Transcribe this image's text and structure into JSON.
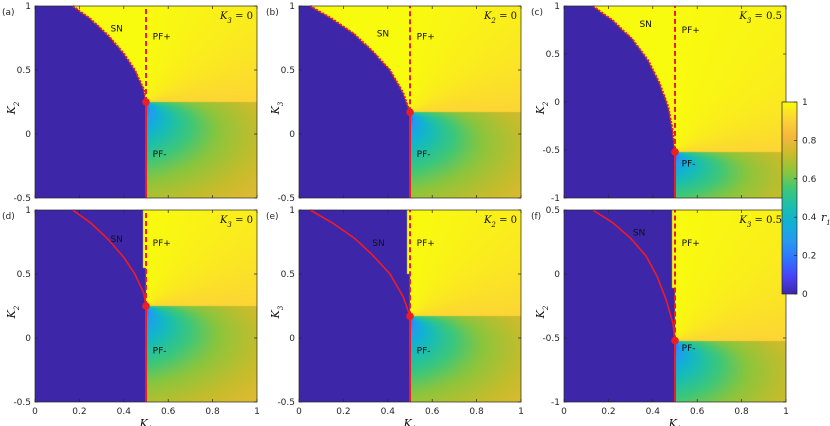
{
  "chart_data": [
    {
      "type": "heatmap",
      "panel": "(a)",
      "corner_label": "K3 = 0",
      "corner_label_var": "K",
      "corner_label_sub": "3",
      "corner_label_val": " = 0",
      "xlabel": "",
      "ylabel_var": "K",
      "ylabel_sub": "2",
      "xlim": [
        0,
        1
      ],
      "ylim": [
        -0.5,
        1
      ],
      "xticks": [],
      "yticks": [
        "-0.5",
        "0",
        "0.5",
        "1"
      ],
      "ytick_values": [
        -0.5,
        0,
        0.5,
        1
      ],
      "variant": "stable",
      "pf_x": 0.5,
      "critical_point": [
        0.5,
        0.25
      ],
      "sn_curve": [
        [
          0.17,
          1.0
        ],
        [
          0.25,
          0.9
        ],
        [
          0.33,
          0.77
        ],
        [
          0.4,
          0.63
        ],
        [
          0.45,
          0.5
        ],
        [
          0.49,
          0.35
        ],
        [
          0.5,
          0.25
        ]
      ],
      "annotations": [
        {
          "text": "SN",
          "x": 0.34,
          "y": 0.8
        },
        {
          "text": "PF+",
          "x": 0.53,
          "y": 0.74
        },
        {
          "text": "PF-",
          "x": 0.53,
          "y": -0.18
        }
      ]
    },
    {
      "type": "heatmap",
      "panel": "(b)",
      "corner_label": "K2 = 0",
      "corner_label_var": "K",
      "corner_label_sub": "2",
      "corner_label_val": " = 0",
      "xlabel": "",
      "ylabel_var": "K",
      "ylabel_sub": "3",
      "xlim": [
        0,
        1
      ],
      "ylim": [
        -0.5,
        1
      ],
      "xticks": [],
      "yticks": [
        "-0.5",
        "0",
        "0.5",
        "1"
      ],
      "ytick_values": [
        -0.5,
        0,
        0.5,
        1
      ],
      "variant": "stable",
      "pf_x": 0.5,
      "critical_point": [
        0.5,
        0.17
      ],
      "sn_curve": [
        [
          0.05,
          1.0
        ],
        [
          0.15,
          0.9
        ],
        [
          0.25,
          0.78
        ],
        [
          0.33,
          0.65
        ],
        [
          0.41,
          0.5
        ],
        [
          0.47,
          0.32
        ],
        [
          0.5,
          0.17
        ]
      ],
      "annotations": [
        {
          "text": "SN",
          "x": 0.35,
          "y": 0.76
        },
        {
          "text": "PF+",
          "x": 0.53,
          "y": 0.74
        },
        {
          "text": "PF-",
          "x": 0.53,
          "y": -0.18
        }
      ]
    },
    {
      "type": "heatmap",
      "panel": "(c)",
      "corner_label": "K3 = 0.5",
      "corner_label_var": "K",
      "corner_label_sub": "3",
      "corner_label_val": " = 0.5",
      "xlabel": "",
      "ylabel_var": "K",
      "ylabel_sub": "2",
      "xlim": [
        0,
        1
      ],
      "ylim": [
        -1,
        1
      ],
      "xticks": [],
      "yticks": [
        "-1",
        "-0.5",
        "0",
        "0.5",
        "1"
      ],
      "ytick_values": [
        -1,
        -0.5,
        0,
        0.5,
        1
      ],
      "variant": "stable",
      "pf_x": 0.5,
      "critical_point": [
        0.5,
        -0.52
      ],
      "sn_curve": [
        [
          0.13,
          1.0
        ],
        [
          0.22,
          0.85
        ],
        [
          0.31,
          0.65
        ],
        [
          0.38,
          0.43
        ],
        [
          0.43,
          0.2
        ],
        [
          0.47,
          -0.05
        ],
        [
          0.49,
          -0.3
        ],
        [
          0.5,
          -0.52
        ]
      ],
      "annotations": [
        {
          "text": "SN",
          "x": 0.34,
          "y": 0.78
        },
        {
          "text": "PF+",
          "x": 0.53,
          "y": 0.72
        },
        {
          "text": "PF-",
          "x": 0.53,
          "y": -0.67
        }
      ]
    },
    {
      "type": "heatmap",
      "panel": "(d)",
      "corner_label": "K3 = 0",
      "corner_label_var": "K",
      "corner_label_sub": "3",
      "corner_label_val": " = 0",
      "xlabel_var": "K",
      "xlabel_sub": "1",
      "ylabel_var": "K",
      "ylabel_sub": "2",
      "xlim": [
        0,
        1
      ],
      "ylim": [
        -0.5,
        1
      ],
      "xticks": [
        "0",
        "0.2",
        "0.4",
        "0.6",
        "0.8",
        "1"
      ],
      "xtick_values": [
        0,
        0.2,
        0.4,
        0.6,
        0.8,
        1
      ],
      "yticks": [
        "-0.5",
        "0",
        "0.5",
        "1"
      ],
      "ytick_values": [
        -0.5,
        0,
        0.5,
        1
      ],
      "variant": "bistable",
      "pf_x": 0.5,
      "critical_point": [
        0.5,
        0.25
      ],
      "sn_curve": [
        [
          0.17,
          1.0
        ],
        [
          0.25,
          0.9
        ],
        [
          0.33,
          0.77
        ],
        [
          0.4,
          0.63
        ],
        [
          0.45,
          0.5
        ],
        [
          0.49,
          0.35
        ],
        [
          0.5,
          0.25
        ]
      ],
      "annotations": [
        {
          "text": "SN",
          "x": 0.34,
          "y": 0.75
        },
        {
          "text": "PF+",
          "x": 0.53,
          "y": 0.72
        },
        {
          "text": "PF-",
          "x": 0.53,
          "y": -0.12
        }
      ]
    },
    {
      "type": "heatmap",
      "panel": "(e)",
      "corner_label": "K2 = 0",
      "corner_label_var": "K",
      "corner_label_sub": "2",
      "corner_label_val": " = 0",
      "xlabel_var": "K",
      "xlabel_sub": "1",
      "ylabel_var": "K",
      "ylabel_sub": "3",
      "xlim": [
        0,
        1
      ],
      "ylim": [
        -0.5,
        1
      ],
      "xticks": [
        "0",
        "0.2",
        "0.4",
        "0.6",
        "0.8",
        "1"
      ],
      "xtick_values": [
        0,
        0.2,
        0.4,
        0.6,
        0.8,
        1
      ],
      "yticks": [
        "-0.5",
        "0",
        "0.5",
        "1"
      ],
      "ytick_values": [
        -0.5,
        0,
        0.5,
        1
      ],
      "variant": "bistable",
      "pf_x": 0.5,
      "critical_point": [
        0.5,
        0.17
      ],
      "sn_curve": [
        [
          0.05,
          1.0
        ],
        [
          0.15,
          0.9
        ],
        [
          0.25,
          0.78
        ],
        [
          0.33,
          0.65
        ],
        [
          0.41,
          0.5
        ],
        [
          0.47,
          0.32
        ],
        [
          0.5,
          0.17
        ]
      ],
      "annotations": [
        {
          "text": "SN",
          "x": 0.33,
          "y": 0.72
        },
        {
          "text": "PF+",
          "x": 0.53,
          "y": 0.72
        },
        {
          "text": "PF-",
          "x": 0.53,
          "y": -0.12
        }
      ]
    },
    {
      "type": "heatmap",
      "panel": "(f)",
      "corner_label": "K3 = 0.5",
      "corner_label_var": "K",
      "corner_label_sub": "3",
      "corner_label_val": " = 0.5",
      "xlabel_var": "K",
      "xlabel_sub": "1",
      "ylabel_var": "K",
      "ylabel_sub": "2",
      "xlim": [
        0,
        1
      ],
      "ylim": [
        -1,
        0.5
      ],
      "xticks": [
        "0",
        "0.2",
        "0.4",
        "0.6",
        "0.8",
        "1"
      ],
      "xtick_values": [
        0,
        0.2,
        0.4,
        0.6,
        0.8,
        1
      ],
      "yticks": [
        "-1",
        "-0.5",
        "0",
        "0.5"
      ],
      "ytick_values": [
        -1,
        -0.5,
        0,
        0.5
      ],
      "variant": "bistable",
      "pf_x": 0.5,
      "critical_point": [
        0.5,
        -0.52
      ],
      "sn_curve": [
        [
          0.13,
          0.5
        ],
        [
          0.22,
          0.4
        ],
        [
          0.3,
          0.28
        ],
        [
          0.37,
          0.14
        ],
        [
          0.42,
          -0.02
        ],
        [
          0.46,
          -0.2
        ],
        [
          0.49,
          -0.38
        ],
        [
          0.5,
          -0.52
        ]
      ],
      "annotations": [
        {
          "text": "SN",
          "x": 0.31,
          "y": 0.3
        },
        {
          "text": "PF+",
          "x": 0.53,
          "y": 0.22
        },
        {
          "text": "PF-",
          "x": 0.53,
          "y": -0.6
        }
      ]
    }
  ],
  "colorbar": {
    "label_var": "r",
    "label_sub": "1",
    "ticks": [
      "0",
      "0.2",
      "0.4",
      "0.6",
      "0.8",
      "1"
    ],
    "tick_values": [
      0,
      0.2,
      0.4,
      0.6,
      0.8,
      1
    ],
    "range": [
      0,
      1
    ]
  },
  "colors": {
    "parula": [
      "#3e26a8",
      "#4743f8",
      "#2f73ff",
      "#2799ef",
      "#11b0d7",
      "#1bbfae",
      "#3cc77a",
      "#8cc53c",
      "#c7bc2b",
      "#f5b73b",
      "#fcd436",
      "#f9fb0e"
    ],
    "curve": "#ee1c25"
  }
}
